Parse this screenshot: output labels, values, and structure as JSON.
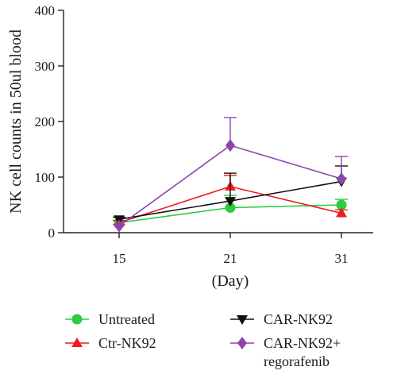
{
  "chart_data": {
    "type": "line",
    "ylabel": "NK cell counts in 50ul blood",
    "xlabel": "(Day)",
    "x": [
      15,
      21,
      31
    ],
    "ylim": [
      0,
      400
    ],
    "yticks": [
      0,
      100,
      200,
      300,
      400
    ],
    "series": [
      {
        "name": "Untreated",
        "marker": "circle",
        "color": "#2ecc40",
        "values": [
          18,
          45,
          50
        ],
        "err": [
          4,
          22,
          10
        ]
      },
      {
        "name": "Ctr-NK92",
        "marker": "triangle-up",
        "color": "#ee1c1c",
        "values": [
          18,
          83,
          35
        ],
        "err": [
          4,
          20,
          6
        ]
      },
      {
        "name": "CAR-NK92",
        "marker": "triangle-down",
        "color": "#111111",
        "values": [
          24,
          57,
          92
        ],
        "err": [
          4,
          50,
          28
        ]
      },
      {
        "name": "CAR-NK92+\nregorafenib",
        "marker": "diamond",
        "color": "#8e44ad",
        "values": [
          12,
          157,
          97
        ],
        "err": [
          3,
          50,
          40
        ]
      }
    ],
    "legend_position": "bottom"
  }
}
